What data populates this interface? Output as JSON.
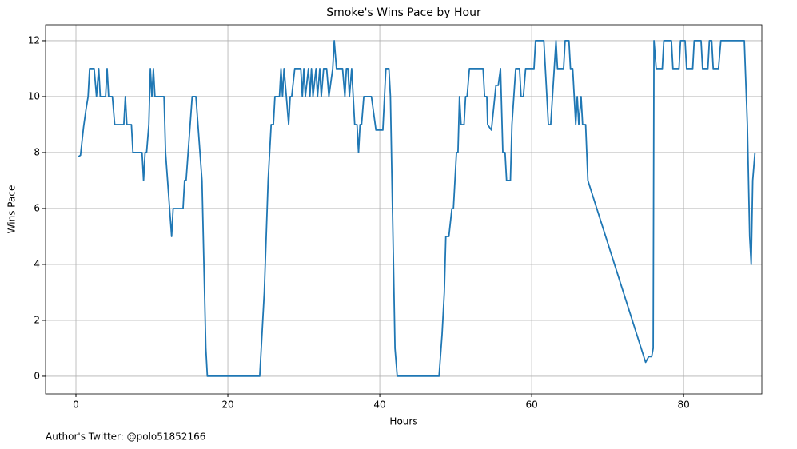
{
  "chart_data": {
    "type": "line",
    "title": "Smoke's Wins Pace by Hour",
    "xlabel": "Hours",
    "ylabel": "Wins Pace",
    "footer": "Author's Twitter: @polo51852166",
    "x": [
      0.3,
      0.6,
      1.0,
      1.3,
      1.6,
      1.8,
      2.4,
      2.7,
      3.0,
      3.2,
      3.9,
      4.1,
      4.3,
      4.8,
      5.1,
      6.3,
      6.5,
      6.7,
      7.3,
      7.5,
      8.7,
      8.9,
      9.1,
      9.3,
      9.6,
      9.8,
      10.0,
      10.2,
      10.4,
      11.6,
      11.8,
      12.6,
      12.8,
      14.1,
      14.3,
      14.5,
      15.3,
      15.8,
      16.6,
      17.1,
      17.3,
      24.2,
      24.4,
      24.8,
      25.3,
      25.7,
      26.0,
      26.2,
      26.8,
      27.0,
      27.2,
      27.4,
      28.0,
      28.2,
      28.4,
      28.8,
      29.6,
      29.8,
      30.0,
      30.2,
      30.6,
      30.8,
      31.0,
      31.2,
      31.6,
      31.8,
      32.1,
      32.3,
      32.6,
      33.0,
      33.3,
      33.8,
      34.0,
      34.3,
      35.1,
      35.4,
      35.6,
      35.8,
      36.0,
      36.3,
      36.5,
      36.7,
      37.0,
      37.2,
      37.4,
      37.6,
      37.9,
      38.9,
      39.5,
      40.4,
      40.8,
      41.2,
      41.4,
      42.0,
      42.3,
      47.8,
      48.2,
      48.5,
      48.7,
      49.1,
      49.5,
      49.7,
      50.1,
      50.3,
      50.5,
      50.7,
      51.1,
      51.3,
      51.5,
      51.8,
      53.6,
      53.8,
      54.1,
      54.2,
      54.7,
      55.3,
      55.6,
      55.9,
      56.2,
      56.5,
      56.7,
      57.2,
      57.4,
      57.9,
      58.4,
      58.6,
      58.9,
      59.2,
      60.3,
      60.5,
      61.6,
      62.0,
      62.2,
      62.5,
      63.2,
      63.4,
      64.2,
      64.4,
      64.9,
      65.1,
      65.4,
      65.6,
      65.8,
      66.0,
      66.2,
      66.5,
      66.7,
      67.1,
      67.4,
      75.0,
      75.4,
      75.8,
      76.0,
      76.1,
      76.4,
      77.2,
      77.4,
      78.4,
      78.6,
      79.4,
      79.6,
      80.2,
      80.4,
      81.2,
      81.4,
      82.3,
      82.5,
      83.2,
      83.4,
      83.7,
      83.9,
      84.6,
      84.9,
      88.0,
      88.4,
      88.7,
      88.9,
      89.1,
      89.4
    ],
    "series": [
      {
        "name": "Wins Pace",
        "color": "#1f77b4",
        "values": [
          7.85,
          7.9,
          8.9,
          9.5,
          10,
          11,
          11,
          10,
          11,
          10,
          10,
          11,
          10,
          10,
          9,
          9,
          10,
          9,
          9,
          8,
          8,
          7,
          8,
          8,
          9,
          11,
          10,
          11,
          10,
          10,
          8,
          5,
          6,
          6,
          7,
          7,
          10,
          10,
          7,
          1,
          0,
          0,
          1,
          3,
          7,
          9,
          9,
          10,
          10,
          11,
          10,
          11,
          9,
          10,
          10,
          11,
          11,
          10,
          11,
          10,
          11,
          10,
          11,
          10,
          11,
          10,
          11,
          10,
          11,
          11,
          10,
          11,
          12,
          11,
          11,
          10,
          11,
          11,
          10,
          11,
          10,
          9,
          9,
          8,
          9,
          9,
          10,
          10,
          8.8,
          8.8,
          11,
          11,
          10,
          1,
          0,
          0,
          1.5,
          3,
          5,
          5,
          6,
          6,
          8,
          8,
          10,
          9,
          9,
          10,
          10,
          11,
          11,
          10,
          10,
          9,
          8.8,
          10.4,
          10.4,
          11,
          8,
          8,
          7,
          7,
          9,
          11,
          11,
          10,
          10,
          11,
          11,
          12,
          12,
          10,
          9,
          9,
          12,
          11,
          11,
          12,
          12,
          11,
          11,
          10,
          9,
          10,
          9,
          10,
          9,
          9,
          7,
          0.5,
          0.7,
          0.7,
          1,
          12,
          11,
          11,
          12,
          12,
          11,
          11,
          12,
          12,
          11,
          11,
          12,
          12,
          11,
          11,
          12,
          12,
          11,
          11,
          12,
          12,
          9,
          5,
          4,
          7,
          8
        ]
      }
    ],
    "xlim": [
      -4.0,
      90.3
    ],
    "ylim": [
      -0.63,
      12.57
    ],
    "xticks": [
      0,
      20,
      40,
      60,
      80
    ],
    "yticks": [
      0,
      2,
      4,
      6,
      8,
      10,
      12
    ],
    "grid": true
  }
}
